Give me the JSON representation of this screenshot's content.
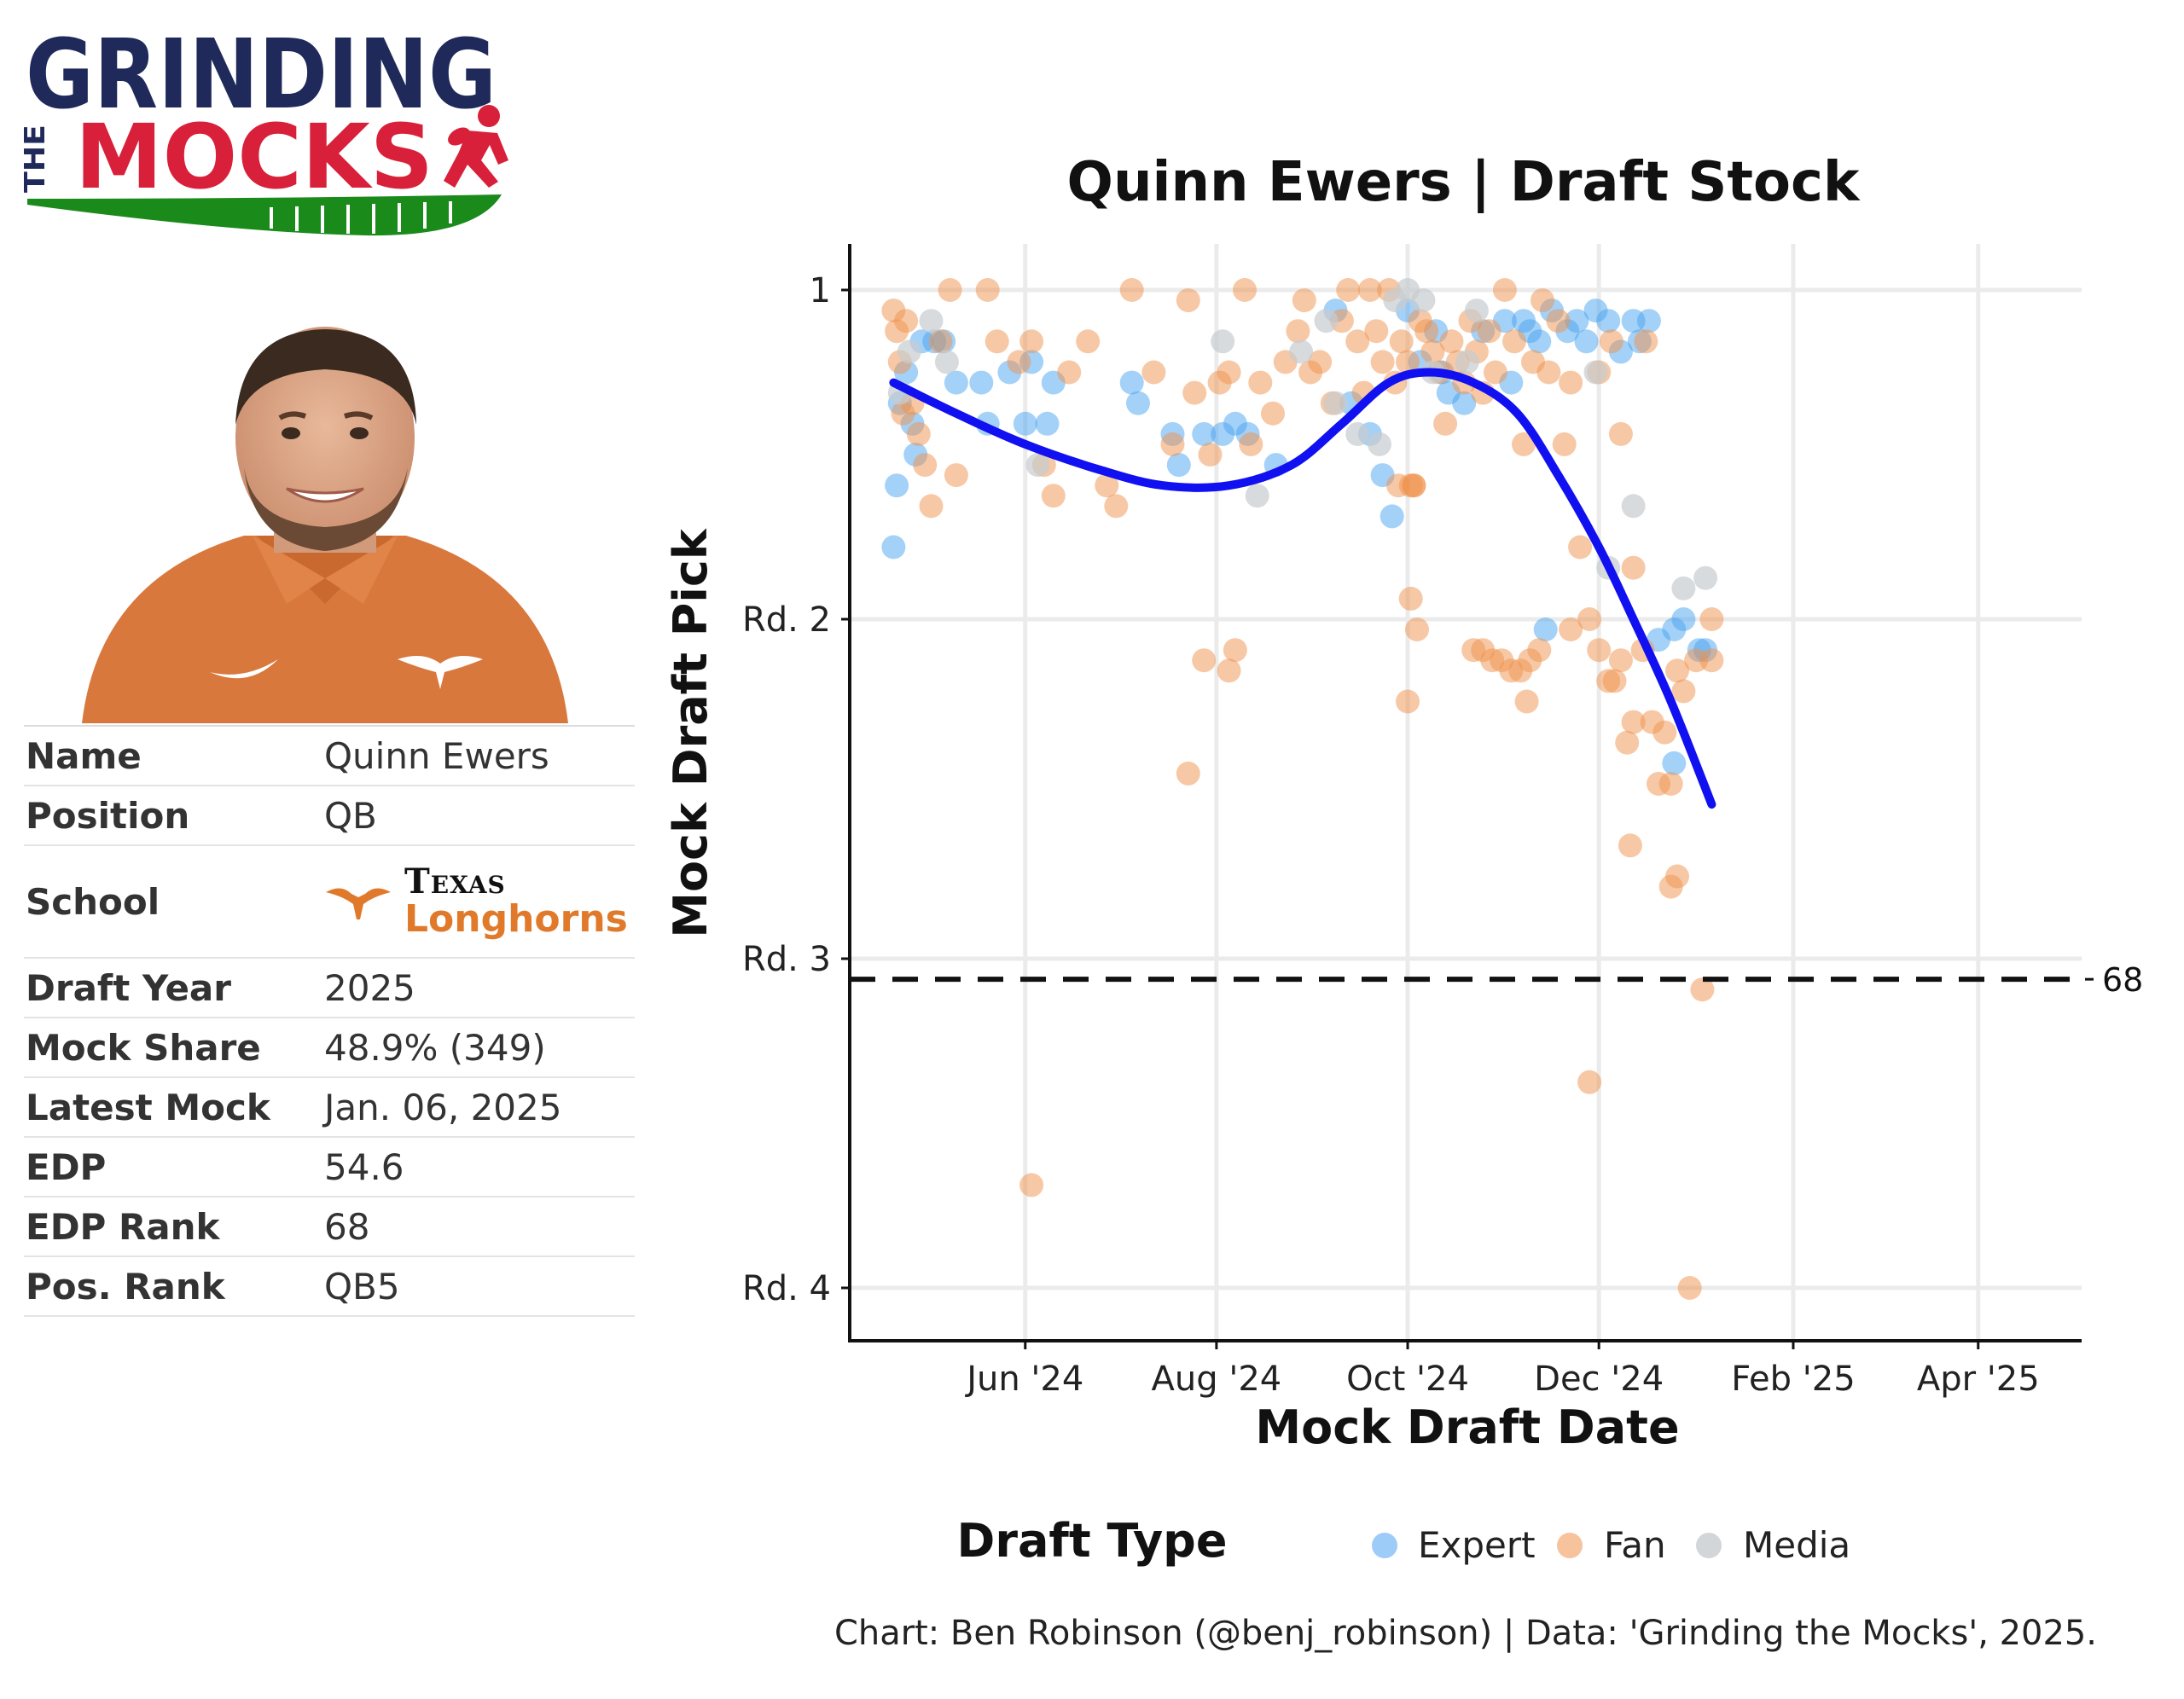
{
  "logo": {
    "line1": "GRINDING",
    "the": "THE",
    "line2": "MOCKS",
    "colors": {
      "navy": "#1f2a5a",
      "red": "#d9203a",
      "green": "#1a8a1a"
    }
  },
  "player": {
    "rows": [
      {
        "label": "Name",
        "value": "Quinn Ewers"
      },
      {
        "label": "Position",
        "value": "QB"
      },
      {
        "label": "School",
        "school_name": "Texas",
        "school_mascot": "Longhorns"
      },
      {
        "label": "Draft Year",
        "value": "2025"
      },
      {
        "label": "Mock Share",
        "value": "48.9% (349)"
      },
      {
        "label": "Latest Mock",
        "value": "Jan. 06, 2025"
      },
      {
        "label": "EDP",
        "value": "54.6"
      },
      {
        "label": "EDP Rank",
        "value": "68"
      },
      {
        "label": "Pos. Rank",
        "value": "QB5"
      }
    ],
    "school_color": "#e07a2a"
  },
  "chart_data": {
    "type": "scatter",
    "title": "Quinn Ewers | Draft Stock",
    "xlabel": "Mock Draft Date",
    "ylabel": "Mock Draft Pick",
    "caption": "Chart: Ben Robinson (@benj_robinson) | Data: 'Grinding the Mocks', 2025.",
    "legend_title": "Draft Type",
    "legend_position": "bottom",
    "grid": true,
    "xlim": [
      "2024-04-06",
      "2025-05-04"
    ],
    "ylim": [
      1,
      128
    ],
    "y_reversed": true,
    "y_ticks": [
      {
        "value": 1,
        "label": "1"
      },
      {
        "value": 33,
        "label": "Rd. 2"
      },
      {
        "value": 66,
        "label": "Rd. 3"
      },
      {
        "value": 98,
        "label": "Rd. 4"
      }
    ],
    "x_ticks": [
      {
        "value": "2024-06-01",
        "label": "Jun '24"
      },
      {
        "value": "2024-08-01",
        "label": "Aug '24"
      },
      {
        "value": "2024-10-01",
        "label": "Oct '24"
      },
      {
        "value": "2024-12-01",
        "label": "Dec '24"
      },
      {
        "value": "2025-02-01",
        "label": "Feb '25"
      },
      {
        "value": "2025-04-01",
        "label": "Apr '25"
      }
    ],
    "reference_line": {
      "value": 68,
      "label": "68",
      "style": "dashed"
    },
    "series": [
      {
        "name": "Expert",
        "color": "#4aa3f0",
        "points": [
          [
            "2024-04-20",
            26
          ],
          [
            "2024-04-21",
            20
          ],
          [
            "2024-04-22",
            12
          ],
          [
            "2024-04-24",
            9
          ],
          [
            "2024-04-26",
            14
          ],
          [
            "2024-04-27",
            17
          ],
          [
            "2024-04-29",
            6
          ],
          [
            "2024-05-03",
            6
          ],
          [
            "2024-05-06",
            6
          ],
          [
            "2024-05-10",
            10
          ],
          [
            "2024-05-18",
            10
          ],
          [
            "2024-05-20",
            14
          ],
          [
            "2024-05-27",
            9
          ],
          [
            "2024-06-01",
            14
          ],
          [
            "2024-06-03",
            8
          ],
          [
            "2024-06-08",
            14
          ],
          [
            "2024-06-10",
            10
          ],
          [
            "2024-07-05",
            10
          ],
          [
            "2024-07-07",
            12
          ],
          [
            "2024-07-18",
            15
          ],
          [
            "2024-07-20",
            18
          ],
          [
            "2024-07-28",
            15
          ],
          [
            "2024-08-03",
            15
          ],
          [
            "2024-08-07",
            14
          ],
          [
            "2024-08-11",
            15
          ],
          [
            "2024-08-20",
            18
          ],
          [
            "2024-09-08",
            3
          ],
          [
            "2024-09-13",
            12
          ],
          [
            "2024-09-19",
            15
          ],
          [
            "2024-09-23",
            19
          ],
          [
            "2024-09-26",
            23
          ],
          [
            "2024-10-01",
            3
          ],
          [
            "2024-10-05",
            8
          ],
          [
            "2024-10-10",
            5
          ],
          [
            "2024-10-12",
            9
          ],
          [
            "2024-10-14",
            11
          ],
          [
            "2024-10-19",
            12
          ],
          [
            "2024-10-25",
            5
          ],
          [
            "2024-11-01",
            4
          ],
          [
            "2024-11-03",
            10
          ],
          [
            "2024-11-07",
            4
          ],
          [
            "2024-11-09",
            5
          ],
          [
            "2024-11-12",
            6
          ],
          [
            "2024-11-16",
            3
          ],
          [
            "2024-11-21",
            5
          ],
          [
            "2024-11-24",
            4
          ],
          [
            "2024-11-27",
            6
          ],
          [
            "2024-11-30",
            3
          ],
          [
            "2024-12-04",
            4
          ],
          [
            "2024-12-08",
            7
          ],
          [
            "2024-12-12",
            4
          ],
          [
            "2024-12-14",
            6
          ],
          [
            "2024-12-17",
            4
          ],
          [
            "2024-11-14",
            34
          ],
          [
            "2024-12-20",
            35
          ],
          [
            "2024-12-25",
            34
          ],
          [
            "2024-12-28",
            33
          ],
          [
            "2025-01-02",
            36
          ],
          [
            "2025-01-04",
            36
          ],
          [
            "2024-12-25",
            47
          ]
        ]
      },
      {
        "name": "Fan",
        "color": "#f0924c",
        "points": [
          [
            "2024-04-20",
            3
          ],
          [
            "2024-04-21",
            5
          ],
          [
            "2024-04-22",
            8
          ],
          [
            "2024-04-23",
            13
          ],
          [
            "2024-04-24",
            4
          ],
          [
            "2024-04-26",
            12
          ],
          [
            "2024-04-28",
            15
          ],
          [
            "2024-04-30",
            18
          ],
          [
            "2024-05-02",
            22
          ],
          [
            "2024-05-05",
            6
          ],
          [
            "2024-05-08",
            1
          ],
          [
            "2024-05-10",
            19
          ],
          [
            "2024-05-20",
            1
          ],
          [
            "2024-05-23",
            6
          ],
          [
            "2024-05-30",
            8
          ],
          [
            "2024-06-03",
            6
          ],
          [
            "2024-06-07",
            18
          ],
          [
            "2024-06-10",
            21
          ],
          [
            "2024-06-15",
            9
          ],
          [
            "2024-06-21",
            6
          ],
          [
            "2024-06-27",
            20
          ],
          [
            "2024-06-30",
            22
          ],
          [
            "2024-07-05",
            1
          ],
          [
            "2024-07-12",
            9
          ],
          [
            "2024-07-18",
            16
          ],
          [
            "2024-07-23",
            2
          ],
          [
            "2024-07-25",
            11
          ],
          [
            "2024-07-30",
            17
          ],
          [
            "2024-08-02",
            10
          ],
          [
            "2024-08-05",
            9
          ],
          [
            "2024-08-10",
            1
          ],
          [
            "2024-08-12",
            16
          ],
          [
            "2024-08-15",
            10
          ],
          [
            "2024-08-19",
            13
          ],
          [
            "2024-08-23",
            8
          ],
          [
            "2024-08-27",
            5
          ],
          [
            "2024-08-29",
            2
          ],
          [
            "2024-08-31",
            9
          ],
          [
            "2024-09-03",
            8
          ],
          [
            "2024-09-07",
            12
          ],
          [
            "2024-09-10",
            4
          ],
          [
            "2024-09-12",
            1
          ],
          [
            "2024-09-15",
            6
          ],
          [
            "2024-09-17",
            11
          ],
          [
            "2024-09-19",
            1
          ],
          [
            "2024-09-21",
            5
          ],
          [
            "2024-09-23",
            8
          ],
          [
            "2024-09-25",
            1
          ],
          [
            "2024-09-27",
            10
          ],
          [
            "2024-09-29",
            6
          ],
          [
            "2024-10-01",
            8
          ],
          [
            "2024-10-03",
            20
          ],
          [
            "2024-10-05",
            4
          ],
          [
            "2024-10-07",
            5
          ],
          [
            "2024-10-09",
            7
          ],
          [
            "2024-10-11",
            9
          ],
          [
            "2024-10-13",
            14
          ],
          [
            "2024-10-15",
            6
          ],
          [
            "2024-10-17",
            8
          ],
          [
            "2024-10-19",
            10
          ],
          [
            "2024-10-21",
            4
          ],
          [
            "2024-10-23",
            7
          ],
          [
            "2024-10-25",
            11
          ],
          [
            "2024-10-27",
            5
          ],
          [
            "2024-10-29",
            9
          ],
          [
            "2024-11-01",
            1
          ],
          [
            "2024-11-04",
            6
          ],
          [
            "2024-11-07",
            16
          ],
          [
            "2024-11-10",
            8
          ],
          [
            "2024-11-13",
            2
          ],
          [
            "2024-11-15",
            9
          ],
          [
            "2024-11-18",
            4
          ],
          [
            "2024-11-20",
            16
          ],
          [
            "2024-11-22",
            10
          ],
          [
            "2024-11-25",
            26
          ],
          [
            "2024-11-28",
            33
          ],
          [
            "2024-12-01",
            9
          ],
          [
            "2024-12-05",
            6
          ],
          [
            "2024-12-08",
            15
          ],
          [
            "2024-12-12",
            28
          ],
          [
            "2024-12-16",
            6
          ],
          [
            "2024-09-28",
            20
          ],
          [
            "2024-10-02",
            20
          ],
          [
            "2024-10-03",
            20
          ],
          [
            "2024-10-02",
            31
          ],
          [
            "2024-10-04",
            34
          ],
          [
            "2024-10-01",
            41
          ],
          [
            "2024-08-05",
            38
          ],
          [
            "2024-08-07",
            36
          ],
          [
            "2024-07-28",
            37
          ],
          [
            "2024-07-23",
            48
          ],
          [
            "2024-06-03",
            88
          ],
          [
            "2024-10-22",
            36
          ],
          [
            "2024-10-25",
            36
          ],
          [
            "2024-10-28",
            37
          ],
          [
            "2024-10-31",
            37
          ],
          [
            "2024-11-03",
            38
          ],
          [
            "2024-11-06",
            38
          ],
          [
            "2024-11-09",
            37
          ],
          [
            "2024-11-12",
            36
          ],
          [
            "2024-11-08",
            41
          ],
          [
            "2024-11-22",
            34
          ],
          [
            "2024-12-01",
            36
          ],
          [
            "2024-12-04",
            39
          ],
          [
            "2024-12-06",
            39
          ],
          [
            "2024-12-08",
            37
          ],
          [
            "2024-12-10",
            45
          ],
          [
            "2024-12-12",
            43
          ],
          [
            "2024-12-15",
            36
          ],
          [
            "2024-12-18",
            43
          ],
          [
            "2024-12-20",
            49
          ],
          [
            "2024-12-24",
            49
          ],
          [
            "2024-12-22",
            44
          ],
          [
            "2024-12-26",
            38
          ],
          [
            "2024-12-28",
            40
          ],
          [
            "2025-01-01",
            37
          ],
          [
            "2025-01-06",
            33
          ],
          [
            "2025-01-06",
            37
          ],
          [
            "2024-12-11",
            55
          ],
          [
            "2024-12-24",
            59
          ],
          [
            "2024-12-26",
            58
          ],
          [
            "2025-01-03",
            69
          ],
          [
            "2024-11-28",
            78
          ],
          [
            "2024-12-30",
            98
          ]
        ]
      },
      {
        "name": "Media",
        "color": "#c8ccce",
        "points": [
          [
            "2024-04-22",
            11
          ],
          [
            "2024-04-25",
            7
          ],
          [
            "2024-05-02",
            4
          ],
          [
            "2024-05-07",
            8
          ],
          [
            "2024-06-05",
            18
          ],
          [
            "2024-08-03",
            6
          ],
          [
            "2024-08-14",
            21
          ],
          [
            "2024-08-28",
            7
          ],
          [
            "2024-09-05",
            4
          ],
          [
            "2024-09-08",
            12
          ],
          [
            "2024-09-15",
            15
          ],
          [
            "2024-09-22",
            16
          ],
          [
            "2024-09-27",
            2
          ],
          [
            "2024-10-01",
            1
          ],
          [
            "2024-10-06",
            2
          ],
          [
            "2024-10-09",
            9
          ],
          [
            "2024-10-20",
            8
          ],
          [
            "2024-10-23",
            3
          ],
          [
            "2024-11-30",
            9
          ],
          [
            "2024-12-04",
            28
          ],
          [
            "2024-12-12",
            22
          ],
          [
            "2024-12-28",
            30
          ],
          [
            "2025-01-04",
            29
          ]
        ]
      }
    ],
    "trend": {
      "name": "smooth",
      "color": "#1010f0",
      "points": [
        [
          "2024-04-20",
          10
        ],
        [
          "2024-05-10",
          13
        ],
        [
          "2024-06-01",
          16
        ],
        [
          "2024-06-25",
          18.5
        ],
        [
          "2024-07-15",
          20
        ],
        [
          "2024-08-05",
          20
        ],
        [
          "2024-08-25",
          18
        ],
        [
          "2024-09-10",
          14
        ],
        [
          "2024-09-25",
          10
        ],
        [
          "2024-10-08",
          9
        ],
        [
          "2024-10-22",
          10
        ],
        [
          "2024-11-05",
          13
        ],
        [
          "2024-11-18",
          19
        ],
        [
          "2024-12-01",
          26
        ],
        [
          "2024-12-12",
          33
        ],
        [
          "2024-12-24",
          41
        ],
        [
          "2025-01-06",
          51
        ]
      ]
    }
  }
}
